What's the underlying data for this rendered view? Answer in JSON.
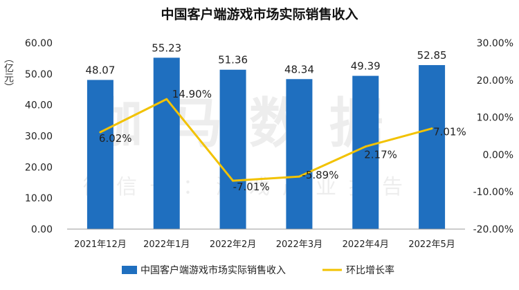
{
  "chart_data": {
    "type": "bar",
    "title": "中国客户端游戏市场实际销售收入",
    "y_left_label": "（亿元）",
    "categories": [
      "2021年12月",
      "2022年1月",
      "2022年2月",
      "2022年3月",
      "2022年4月",
      "2022年5月"
    ],
    "series": [
      {
        "name": "中国客户端游戏市场实际销售收入",
        "type": "bar",
        "axis": "left",
        "values": [
          48.07,
          55.23,
          51.36,
          48.34,
          49.39,
          52.85
        ],
        "labels": [
          "48.07",
          "55.23",
          "51.36",
          "48.34",
          "49.39",
          "52.85"
        ]
      },
      {
        "name": "环比增长率",
        "type": "line",
        "axis": "right",
        "values": [
          6.02,
          14.9,
          -7.01,
          -5.89,
          2.17,
          7.01
        ],
        "labels": [
          "6.02%",
          "14.90%",
          "-7.01%",
          "-5.89%",
          "2.17%",
          "7.01%"
        ]
      }
    ],
    "y_left": {
      "min": 0,
      "max": 60,
      "step": 10,
      "tick_labels": [
        "0.00",
        "10.00",
        "20.00",
        "30.00",
        "40.00",
        "50.00",
        "60.00"
      ]
    },
    "y_right": {
      "min": -20,
      "max": 30,
      "step": 10,
      "tick_labels": [
        "-20.00%",
        "-10.00%",
        "0.00%",
        "10.00%",
        "20.00%",
        "30.00%"
      ]
    },
    "grid": false,
    "legend_position": "bottom",
    "watermark": [
      "伽马数据",
      "微信号：游戏产业报告"
    ],
    "colors": {
      "bar": "#1f6fbf",
      "line": "#f2c200",
      "text": "#222222"
    }
  }
}
